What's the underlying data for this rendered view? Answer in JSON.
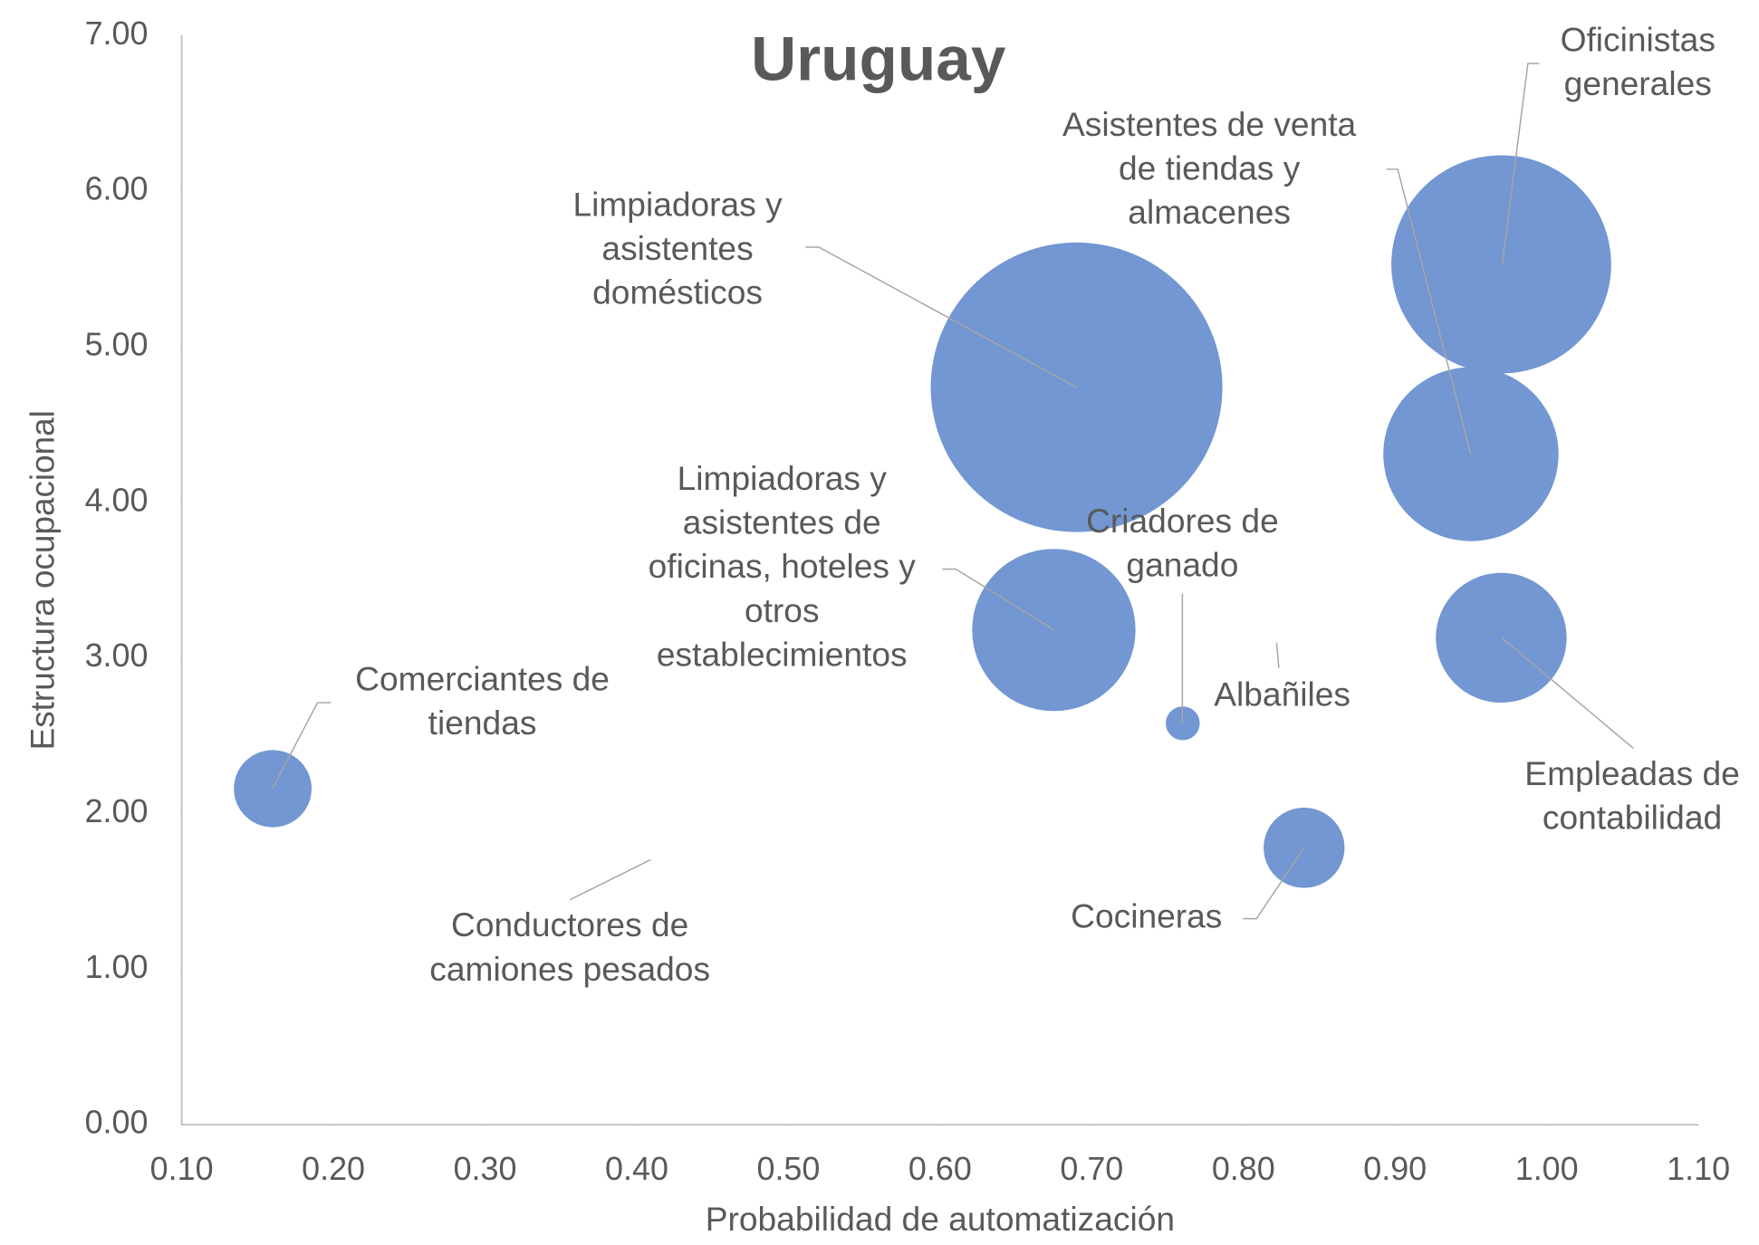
{
  "chart_data": {
    "type": "bubble",
    "title": "Uruguay",
    "x_label": "Probabilidad de automatización",
    "y_label": "Estructura ocupacional",
    "color": "#7297d2",
    "labels": [
      [
        "Comerciantes de",
        "tiendas"
      ],
      [
        "Conductores de",
        "camiones pesados"
      ],
      [
        "Limpiadoras y",
        "asistentes",
        "domésticos"
      ],
      [
        "Limpiadoras y",
        "asistentes de",
        "oficinas, hoteles y",
        "otros",
        "establecimientos"
      ],
      [
        "Criadores de",
        "ganado"
      ],
      [
        "Albañiles"
      ],
      [
        "Cocineras"
      ],
      [
        "Asistentes de venta",
        "de tiendas y",
        "almacenes"
      ],
      [
        "Oficinistas",
        "generales"
      ],
      [
        "Empleadas de",
        "contabilidad"
      ]
    ],
    "x": [
      0.16,
      0.409,
      0.69,
      0.675,
      0.76,
      0.823,
      0.84,
      0.95,
      0.97,
      0.97
    ],
    "values": [
      2.16,
      1.7,
      4.74,
      3.18,
      2.58,
      3.09,
      1.78,
      4.31,
      5.53,
      3.13
    ],
    "sizes": [
      12,
      0,
      169,
      53,
      2.3,
      0,
      13,
      61,
      96,
      34
    ],
    "xlim": [
      0.1,
      1.1
    ],
    "xticks": [
      {
        "value": 0.1,
        "label": "0.10"
      },
      {
        "value": 0.2,
        "label": "0.20"
      },
      {
        "value": 0.3,
        "label": "0.30"
      },
      {
        "value": 0.4,
        "label": "0.40"
      },
      {
        "value": 0.5,
        "label": "0.50"
      },
      {
        "value": 0.6,
        "label": "0.60"
      },
      {
        "value": 0.7,
        "label": "0.70"
      },
      {
        "value": 0.8,
        "label": "0.80"
      },
      {
        "value": 0.9,
        "label": "0.90"
      },
      {
        "value": 1.0,
        "label": "1.00"
      },
      {
        "value": 1.1,
        "label": "1.10"
      }
    ],
    "ylim": [
      0,
      7
    ],
    "yticks": [
      {
        "value": 0,
        "label": "0.00"
      },
      {
        "value": 1,
        "label": "1.00"
      },
      {
        "value": 2,
        "label": "2.00"
      },
      {
        "value": 3,
        "label": "3.00"
      },
      {
        "value": 4,
        "label": "4.00"
      },
      {
        "value": 5,
        "label": "5.00"
      },
      {
        "value": 6,
        "label": "6.00"
      },
      {
        "value": 7,
        "label": "7.00"
      }
    ],
    "grid": false
  }
}
